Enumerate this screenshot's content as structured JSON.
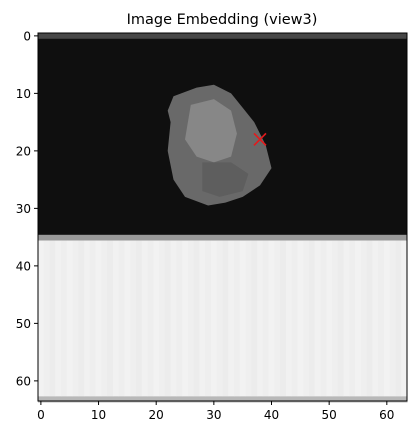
{
  "chart_data": {
    "type": "heatmap",
    "title": "Image Embedding (view3)",
    "xlabel": "",
    "ylabel": "",
    "colormap": "gray",
    "grid": false,
    "xlim": [
      -0.5,
      63.5
    ],
    "ylim": [
      63.5,
      -0.5
    ],
    "x_ticks": [
      0,
      10,
      20,
      30,
      40,
      50,
      60
    ],
    "y_ticks": [
      0,
      10,
      20,
      30,
      40,
      50,
      60
    ],
    "x_tick_labels": [
      "0",
      "10",
      "20",
      "30",
      "40",
      "50",
      "60"
    ],
    "y_tick_labels": [
      "0",
      "10",
      "20",
      "30",
      "40",
      "50",
      "60"
    ],
    "image_size": [
      64,
      64
    ],
    "regions": [
      {
        "name": "top border rows",
        "rows": [
          0,
          0
        ],
        "value": 0.28
      },
      {
        "name": "dark background",
        "rows": [
          1,
          34
        ],
        "value": 0.06
      },
      {
        "name": "grey object",
        "rows": [
          8,
          30
        ],
        "cols": [
          22,
          40
        ],
        "value": 0.45
      },
      {
        "name": "transition row",
        "rows": [
          35,
          35
        ],
        "value": 0.6
      },
      {
        "name": "bright lower region",
        "rows": [
          36,
          62
        ],
        "value": 0.95
      },
      {
        "name": "bottom border row",
        "rows": [
          63,
          63
        ],
        "value": 0.72
      }
    ],
    "marker": {
      "x": 38,
      "y": 18,
      "symbol": "x",
      "color": "#e31a1c"
    }
  }
}
